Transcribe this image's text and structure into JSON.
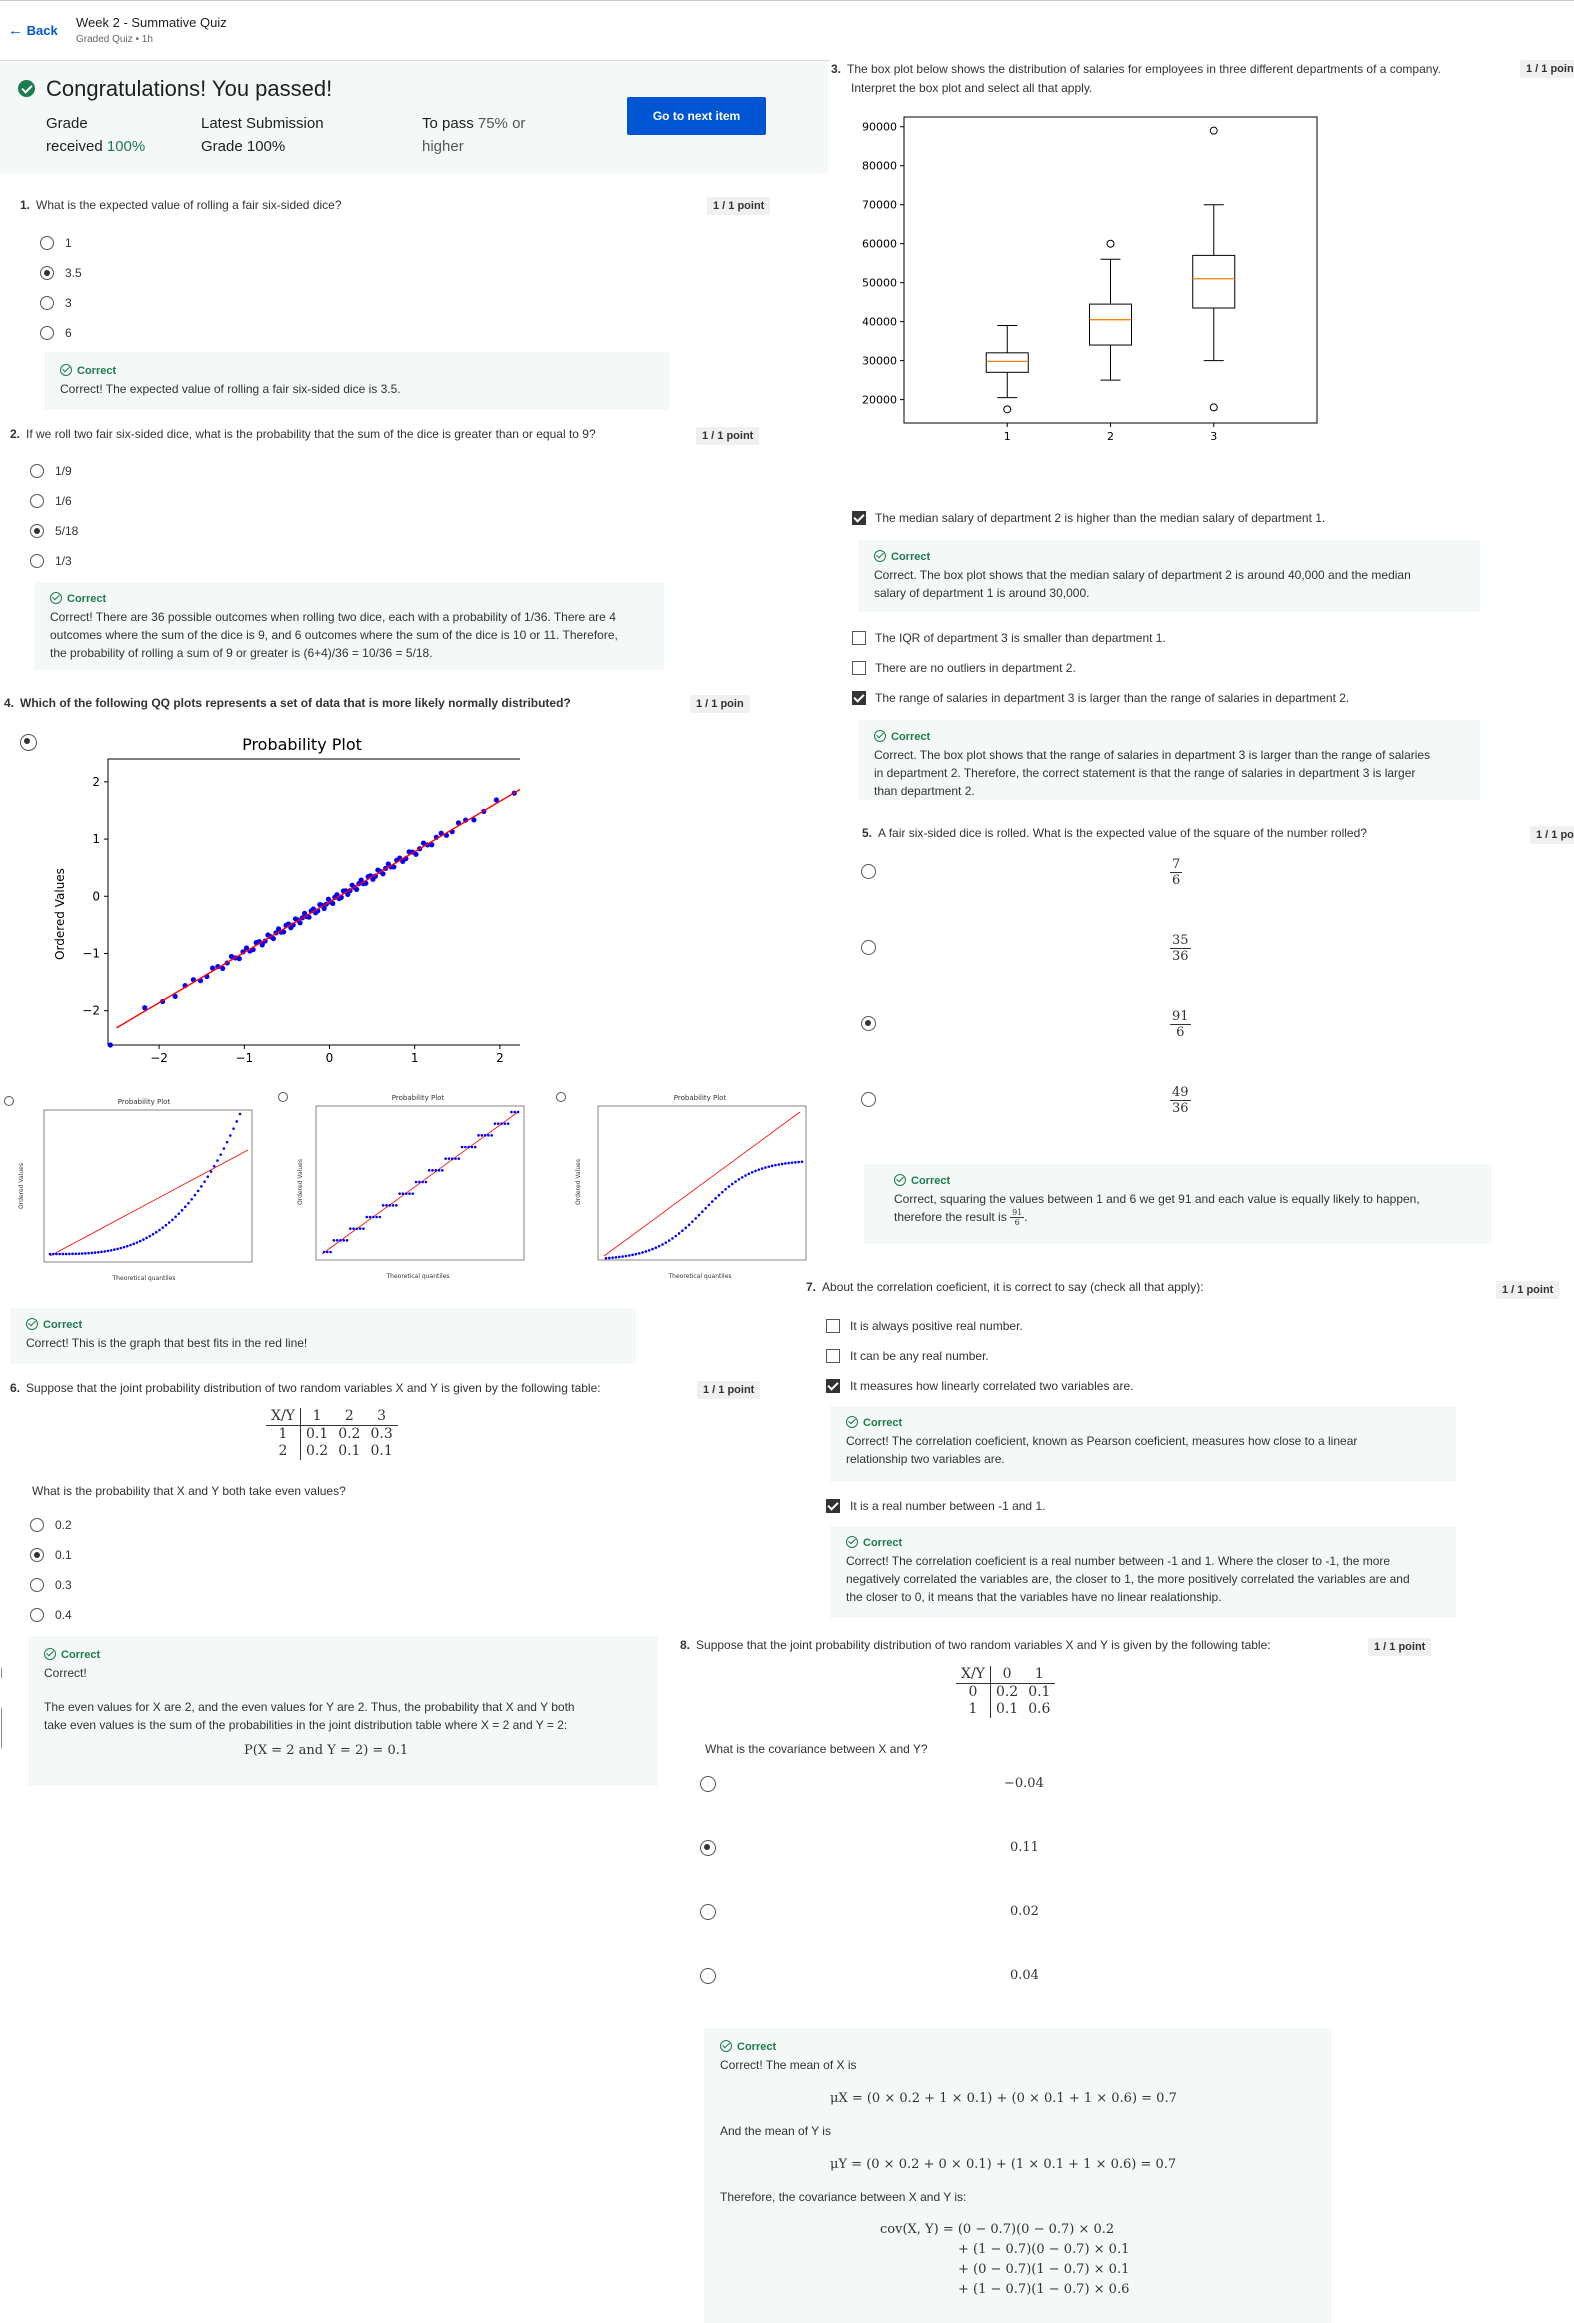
{
  "header": {
    "back_label": "Back",
    "title": "Week 2 - Summative Quiz",
    "subtitle": "Graded Quiz • 1h"
  },
  "result": {
    "heading": "Congratulations! You passed!",
    "grade_label": "Grade",
    "grade_prefix": "received",
    "grade_value": "100%",
    "latest_label": "Latest Submission",
    "latest_prefix": "Grade",
    "latest_value": "100%",
    "pass_label": "To pass",
    "pass_value": "75% or",
    "pass_suffix": "higher",
    "next_button": "Go to next item"
  },
  "q1": {
    "number": "1.",
    "text": "What is the expected value of rolling a fair six-sided dice?",
    "points": "1 / 1 point",
    "options": [
      "1",
      "3.5",
      "3",
      "6"
    ],
    "selected": 1,
    "fb_title": "Correct",
    "fb_text": "Correct! The expected value of rolling a fair six-sided dice is 3.5."
  },
  "q2": {
    "number": "2.",
    "text": "If we roll two fair six-sided dice, what is the probability that the sum of the dice is greater than or equal to 9?",
    "points": "1 / 1 point",
    "options": [
      "1/9",
      "1/6",
      "5/18",
      "1/3"
    ],
    "selected": 2,
    "fb_title": "Correct",
    "fb_line1": "Correct! There are 36 possible outcomes when rolling two dice, each with a probability of 1/36. There are 4",
    "fb_line2": "outcomes where the sum of the dice is 9, and 6 outcomes where the sum of the dice is 10 or 11. Therefore,",
    "fb_line3": "the probability of rolling a sum of 9 or greater is (6+4)/36 = 10/36 = 5/18."
  },
  "q3": {
    "number": "3.",
    "text1": "The box plot below shows the distribution of salaries for employees in three different departments of a company.",
    "text2": "Interpret the box plot and select all that apply.",
    "points": "1 / 1 point",
    "options": [
      "The median salary of department 2 is higher than the median salary of  department 1.",
      "The IQR of department 3 is smaller than department 1.",
      "There are no outliers in department 2.",
      "The range of salaries in department 3 is larger than the range of salaries in department 2."
    ],
    "checked": [
      true,
      false,
      false,
      true
    ],
    "fb1_title": "Correct",
    "fb1_line1": "Correct. The box plot shows that the median salary of department 2 is around 40,000 and the median",
    "fb1_line2": "salary of department 1 is around 30,000.",
    "fb2_title": "Correct",
    "fb2_line1": "Correct. The box plot shows that the range of salaries in department 3 is larger than the range of salaries",
    "fb2_line2": "in department 2. Therefore, the correct statement is that the range of salaries in department 3 is larger",
    "fb2_line3": "than department 2."
  },
  "chart_data": [
    {
      "type": "box",
      "categories": [
        "1",
        "2",
        "3"
      ],
      "y_ticks": [
        "90000",
        "80000",
        "70000",
        "60000",
        "50000",
        "40000",
        "30000",
        "20000"
      ],
      "ylim": [
        14000,
        92500
      ],
      "boxes": [
        {
          "whisker_low": 20500,
          "q1": 27000,
          "median": 29800,
          "q3": 32000,
          "whisker_high": 39000,
          "outliers": [
            17500
          ]
        },
        {
          "whisker_low": 25000,
          "q1": 34000,
          "median": 40500,
          "q3": 44500,
          "whisker_high": 56000,
          "outliers": [
            60000
          ]
        },
        {
          "whisker_low": 30000,
          "q1": 43500,
          "median": 51000,
          "q3": 57000,
          "whisker_high": 70000,
          "outliers": [
            89000,
            18000
          ]
        }
      ],
      "median_color": "#ff7f0e"
    },
    {
      "type": "scatter",
      "title": "Probability Plot",
      "ylabel": "Ordered Values",
      "x_ticks": [
        "−2",
        "−1",
        "0",
        "1",
        "2"
      ],
      "y_ticks": [
        "2",
        "1",
        "0",
        "−1",
        "−2"
      ],
      "xlim": [
        -2.6,
        2.6
      ],
      "ylim": [
        -2.6,
        2.4
      ],
      "point_color": "#0000ff",
      "line_color": "#ff0000",
      "fit_line": {
        "x": [
          -2.5,
          2.5
        ],
        "y": [
          -2.3,
          2.1
        ]
      }
    },
    {
      "type": "scatter",
      "title": "Probability Plot",
      "xlabel": "Theoretical quantiles",
      "ylabel": "Ordered Values"
    },
    {
      "type": "scatter",
      "title": "Probability Plot",
      "xlabel": "Theoretical quantiles",
      "ylabel": "Ordered Values"
    },
    {
      "type": "scatter",
      "title": "Probability Plot",
      "xlabel": "Theoretical quantiles",
      "ylabel": "Ordered Values"
    }
  ],
  "q4": {
    "number": "4.",
    "text": "Which of the following QQ plots represents a set of data that is more likely normally distributed?",
    "points": "1 / 1 poin",
    "fb_title": "Correct",
    "fb_text": "Correct! This is the graph that best fits in the red line!"
  },
  "q5": {
    "number": "5.",
    "text": "A fair six-sided dice is rolled. What is the expected value of the square of the number rolled?",
    "points": "1 / 1 poi",
    "options": [
      {
        "num": "7",
        "den": "6"
      },
      {
        "num": "35",
        "den": "36"
      },
      {
        "num": "91",
        "den": "6"
      },
      {
        "num": "49",
        "den": "36"
      }
    ],
    "selected": 2,
    "fb_title": "Correct",
    "fb_line1": "Correct, squaring the values between 1 and 6 we get 91 and each value is equally likely to happen,",
    "fb_line2_prefix": "therefore the result is",
    "fb_frac_num": "91",
    "fb_frac_den": "6"
  },
  "q6": {
    "number": "6.",
    "text": "Suppose that the joint probability distribution of two random variables X and Y is given by the following table:",
    "points": "1 / 1 point",
    "table": [
      [
        "X/Y",
        "1",
        "2",
        "3"
      ],
      [
        "1",
        "0.1",
        "0.2",
        "0.3"
      ],
      [
        "2",
        "0.2",
        "0.1",
        "0.1"
      ]
    ],
    "question": "What is the probability that X and Y both take even values?",
    "options": [
      "0.2",
      "0.1",
      "0.3",
      "0.4"
    ],
    "selected": 1,
    "fb_title": "Correct",
    "fb_text": "Correct!",
    "fb_line1": "The even values for X are 2, and the even values for Y are 2. Thus, the probability that X and Y both",
    "fb_line2": "take even values is the sum of the probabilities in the joint distribution table where X = 2 and Y = 2:",
    "fb_formula": "P(X = 2 and Y = 2) = 0.1"
  },
  "q7": {
    "number": "7.",
    "text": "About the correlation coeficient, it is correct to say (check all that apply):",
    "points": "1 / 1 point",
    "options": [
      "It is always positive real number.",
      "It can be any real number.",
      "It measures how linearly correlated two variables are.",
      "It is a real number between -1 and 1."
    ],
    "checked": [
      false,
      false,
      true,
      true
    ],
    "fb1_title": "Correct",
    "fb1_line1": "Correct! The correlation coeficient, known as Pearson coeficient, measures how close to a linear",
    "fb1_line2": "relationship two variables are.",
    "fb2_title": "Correct",
    "fb2_line1": "Correct! The correlation coeficient is a real number between -1 and 1. Where the closer to -1, the more",
    "fb2_line2": "negatively correlated the variables are, the closer to 1, the more positively correlated the variables are and",
    "fb2_line3": "the closer to 0, it means that the variables have no linear realationship."
  },
  "q8": {
    "number": "8.",
    "text": "Suppose that the joint probability distribution of two random variables X and Y is given by the following table:",
    "points": "1 / 1 point",
    "table": [
      [
        "X/Y",
        "0",
        "1"
      ],
      [
        "0",
        "0.2",
        "0.1"
      ],
      [
        "1",
        "0.1",
        "0.6"
      ]
    ],
    "question": "What is the covariance between X and Y?",
    "options": [
      "−0.04",
      "0.11",
      "0.02",
      "0.04"
    ],
    "selected": 1,
    "fb_title": "Correct",
    "fb_text": "Correct! The mean of X is",
    "fb_mux": "μX = (0 × 0.2 + 1 × 0.1) + (0 × 0.1 + 1 × 0.6) = 0.7",
    "fb_and": "And the mean of Y is",
    "fb_muy": "μY = (0 × 0.2 + 0 × 0.1) + (1 × 0.1 + 1 × 0.6) = 0.7",
    "fb_therefore": "Therefore, the covariance between X and Y is:",
    "fb_cov1": "cov(X, Y) = (0 − 0.7)(0 − 0.7) × 0.2",
    "fb_cov2": "+ (1 − 0.7)(0 − 0.7) × 0.1",
    "fb_cov3": "+ (0 − 0.7)(1 − 0.7) × 0.1",
    "fb_cov4": "+ (1 − 0.7)(1 − 0.7) × 0.6"
  }
}
